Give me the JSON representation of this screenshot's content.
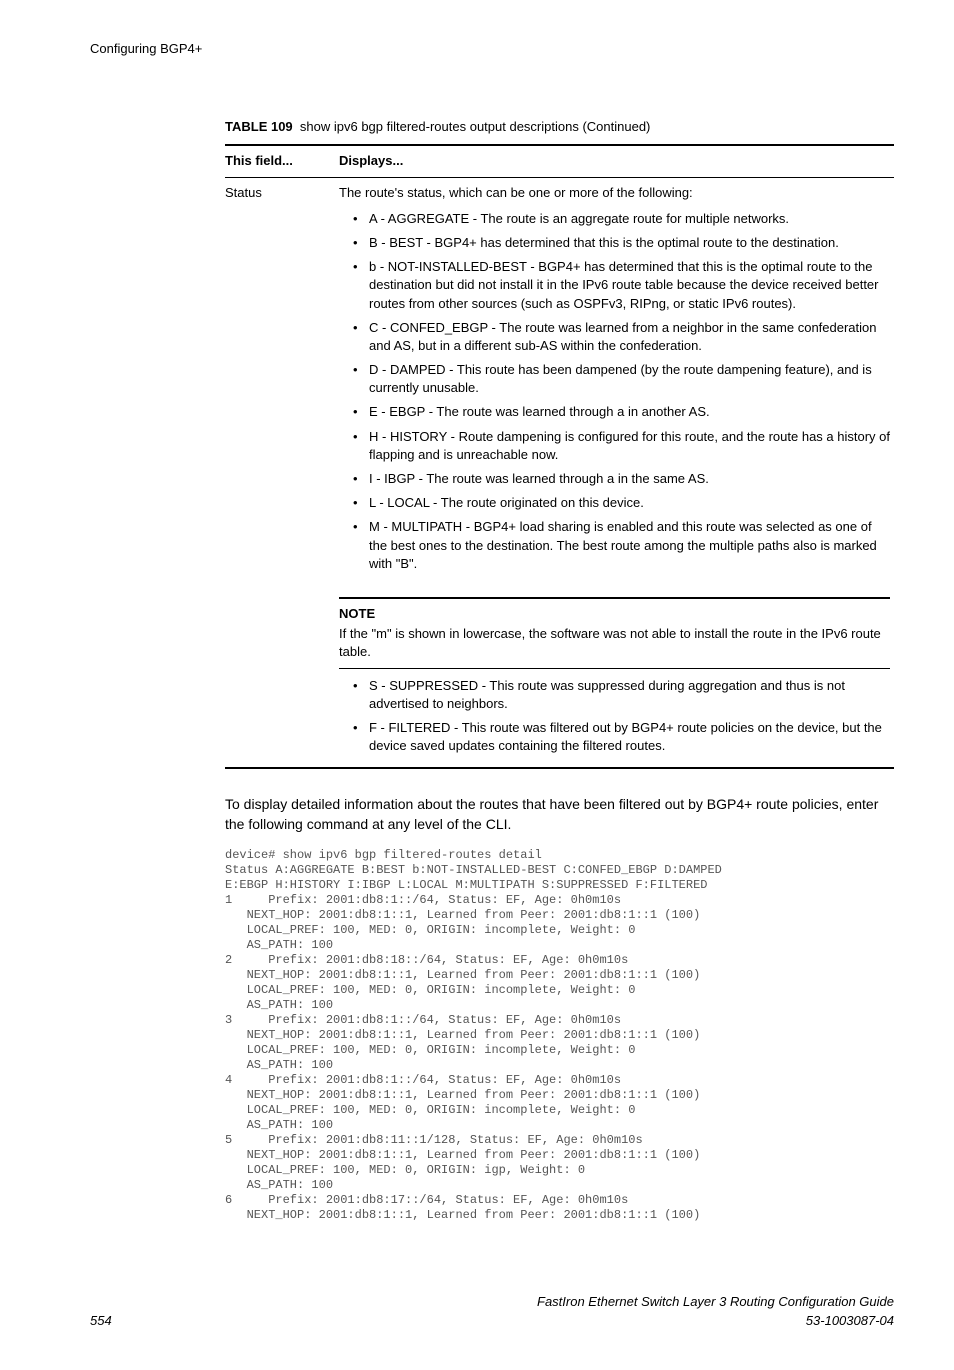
{
  "header": {
    "title": "Configuring BGP4+"
  },
  "table": {
    "caption_label": "TABLE 109",
    "caption_text": "show ipv6 bgp filtered-routes output descriptions (Continued)",
    "columns": {
      "field": "This field...",
      "displays": "Displays..."
    },
    "row": {
      "field": "Status",
      "intro": "The route's status, which can be one or more of the following:",
      "bullets": [
        "A - AGGREGATE - The route is an aggregate route for multiple networks.",
        "B - BEST - BGP4+ has determined that this is the optimal route to the destination.",
        "b - NOT-INSTALLED-BEST - BGP4+ has determined that this is the optimal route to the destination but did not install it in the IPv6 route table because the device received better routes from other sources (such as OSPFv3, RIPng, or static IPv6 routes).",
        "C - CONFED_EBGP - The route was learned from a neighbor in the same confederation and AS, but in a different sub-AS within the confederation.",
        "D - DAMPED - This route has been dampened (by the route dampening feature), and is currently unusable.",
        "E - EBGP - The route was learned through a in another AS.",
        "H - HISTORY - Route dampening is configured for this route, and the route has a history of flapping and is unreachable now.",
        "I - IBGP - The route was learned through a in the same AS.",
        "L - LOCAL - The route originated on this device.",
        "M - MULTIPATH - BGP4+ load sharing is enabled and this route was selected as one of the best ones to the destination. The best route among the multiple paths also is marked with \"B\"."
      ],
      "note_label": "NOTE",
      "note_text": "If the \"m\" is shown in lowercase, the software was not able to install the route in the IPv6 route table.",
      "bullets2": [
        "S - SUPPRESSED - This route was suppressed during aggregation and thus is not advertised to neighbors.",
        "F - FILTERED - This route was filtered out by BGP4+ route policies on the device, but the device saved updates containing the filtered routes."
      ]
    }
  },
  "body_para": "To display detailed information about the routes that have been filtered out by BGP4+ route policies, enter the following command at any level of the CLI.",
  "cli": "device# show ipv6 bgp filtered-routes detail\nStatus A:AGGREGATE B:BEST b:NOT-INSTALLED-BEST C:CONFED_EBGP D:DAMPED\nE:EBGP H:HISTORY I:IBGP L:LOCAL M:MULTIPATH S:SUPPRESSED F:FILTERED\n1     Prefix: 2001:db8:1::/64, Status: EF, Age: 0h0m10s\n   NEXT_HOP: 2001:db8:1::1, Learned from Peer: 2001:db8:1::1 (100)\n   LOCAL_PREF: 100, MED: 0, ORIGIN: incomplete, Weight: 0\n   AS_PATH: 100\n2     Prefix: 2001:db8:18::/64, Status: EF, Age: 0h0m10s\n   NEXT_HOP: 2001:db8:1::1, Learned from Peer: 2001:db8:1::1 (100)\n   LOCAL_PREF: 100, MED: 0, ORIGIN: incomplete, Weight: 0\n   AS_PATH: 100\n3     Prefix: 2001:db8:1::/64, Status: EF, Age: 0h0m10s\n   NEXT_HOP: 2001:db8:1::1, Learned from Peer: 2001:db8:1::1 (100)\n   LOCAL_PREF: 100, MED: 0, ORIGIN: incomplete, Weight: 0\n   AS_PATH: 100\n4     Prefix: 2001:db8:1::/64, Status: EF, Age: 0h0m10s\n   NEXT_HOP: 2001:db8:1::1, Learned from Peer: 2001:db8:1::1 (100)\n   LOCAL_PREF: 100, MED: 0, ORIGIN: incomplete, Weight: 0\n   AS_PATH: 100\n5     Prefix: 2001:db8:11::1/128, Status: EF, Age: 0h0m10s\n   NEXT_HOP: 2001:db8:1::1, Learned from Peer: 2001:db8:1::1 (100)\n   LOCAL_PREF: 100, MED: 0, ORIGIN: igp, Weight: 0\n   AS_PATH: 100\n6     Prefix: 2001:db8:17::/64, Status: EF, Age: 0h0m10s\n   NEXT_HOP: 2001:db8:1::1, Learned from Peer: 2001:db8:1::1 (100)",
  "footer": {
    "page": "554",
    "guide": "FastIron Ethernet Switch Layer 3 Routing Configuration Guide",
    "docnum": "53-1003087-04"
  }
}
